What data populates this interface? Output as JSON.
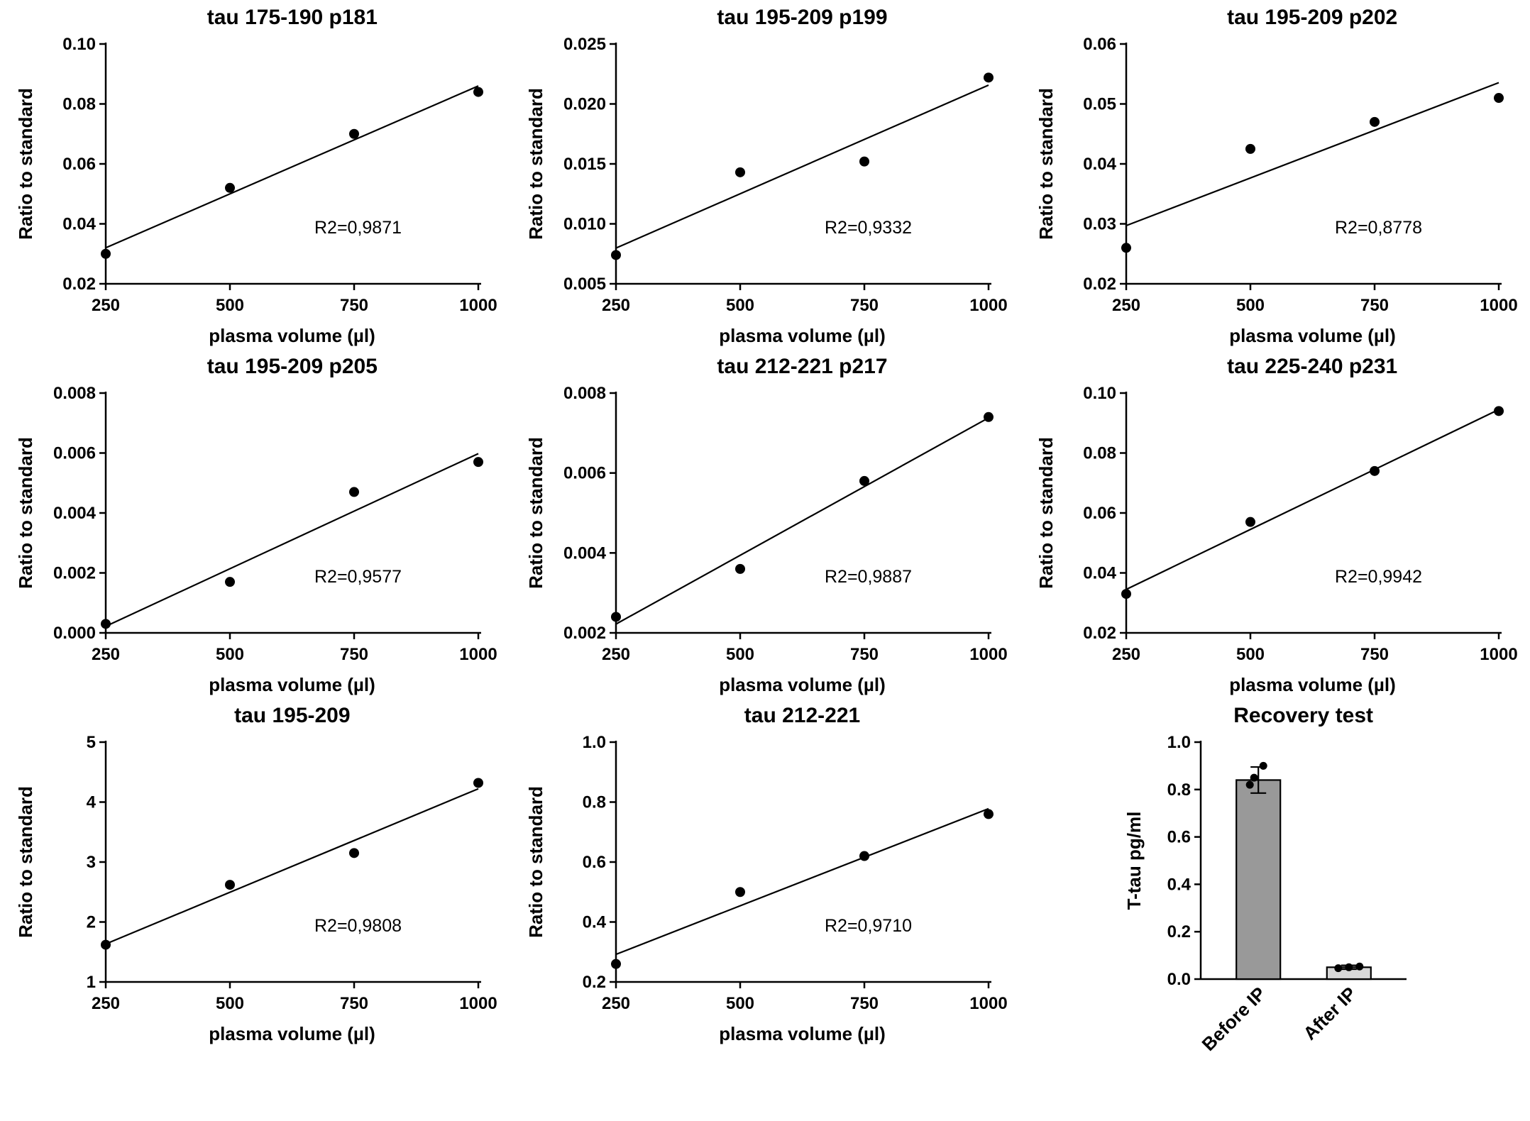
{
  "figure": {
    "background": "#ffffff",
    "accent_color": "#000000"
  },
  "chart_data": [
    {
      "type": "scatter",
      "title": "tau 175-190 p181",
      "xlabel": "plasma volume (µl)",
      "ylabel": "Ratio to standard",
      "x": [
        250,
        500,
        750,
        1000
      ],
      "y": [
        0.03,
        0.052,
        0.07,
        0.084
      ],
      "xticks": [
        "250",
        "500",
        "750",
        "1000"
      ],
      "yticks": [
        "0.02",
        "0.04",
        "0.06",
        "0.08",
        "0.10"
      ],
      "annotation": "R2=0,9871",
      "trendline": true,
      "marker_color": "#000000",
      "line_color": "#000000"
    },
    {
      "type": "scatter",
      "title": "tau 195-209 p199",
      "xlabel": "plasma volume (µl)",
      "ylabel": "Ratio to standard",
      "x": [
        250,
        500,
        750,
        1000
      ],
      "y": [
        0.0074,
        0.0143,
        0.0152,
        0.0222
      ],
      "xticks": [
        "250",
        "500",
        "750",
        "1000"
      ],
      "yticks": [
        "0.005",
        "0.010",
        "0.015",
        "0.020",
        "0.025"
      ],
      "annotation": "R2=0,9332",
      "trendline": true,
      "marker_color": "#000000",
      "line_color": "#000000"
    },
    {
      "type": "scatter",
      "title": "tau 195-209 p202",
      "xlabel": "plasma volume (µl)",
      "ylabel": "Ratio to standard",
      "x": [
        250,
        500,
        750,
        1000
      ],
      "y": [
        0.026,
        0.0425,
        0.047,
        0.051
      ],
      "xticks": [
        "250",
        "500",
        "750",
        "1000"
      ],
      "yticks": [
        "0.02",
        "0.03",
        "0.04",
        "0.05",
        "0.06"
      ],
      "annotation": "R2=0,8778",
      "trendline": true,
      "marker_color": "#000000",
      "line_color": "#000000"
    },
    {
      "type": "scatter",
      "title": "tau 195-209 p205",
      "xlabel": "plasma volume (µl)",
      "ylabel": "Ratio to standard",
      "x": [
        250,
        500,
        750,
        1000
      ],
      "y": [
        0.0003,
        0.0017,
        0.0047,
        0.0057
      ],
      "xticks": [
        "250",
        "500",
        "750",
        "1000"
      ],
      "yticks": [
        "0.000",
        "0.002",
        "0.004",
        "0.006",
        "0.008"
      ],
      "annotation": "R2=0,9577",
      "trendline": true,
      "marker_color": "#000000",
      "line_color": "#000000"
    },
    {
      "type": "scatter",
      "title": "tau 212-221 p217",
      "xlabel": "plasma volume (µl)",
      "ylabel": "Ratio to standard",
      "x": [
        250,
        500,
        750,
        1000
      ],
      "y": [
        0.0024,
        0.0036,
        0.0058,
        0.0074
      ],
      "xticks": [
        "250",
        "500",
        "750",
        "1000"
      ],
      "yticks": [
        "0.002",
        "0.004",
        "0.006",
        "0.008"
      ],
      "annotation": "R2=0,9887",
      "trendline": true,
      "marker_color": "#000000",
      "line_color": "#000000"
    },
    {
      "type": "scatter",
      "title": "tau 225-240 p231",
      "xlabel": "plasma volume (µl)",
      "ylabel": "Ratio to standard",
      "x": [
        250,
        500,
        750,
        1000
      ],
      "y": [
        0.033,
        0.057,
        0.074,
        0.094
      ],
      "xticks": [
        "250",
        "500",
        "750",
        "1000"
      ],
      "yticks": [
        "0.02",
        "0.04",
        "0.06",
        "0.08",
        "0.10"
      ],
      "annotation": "R2=0,9942",
      "trendline": true,
      "marker_color": "#000000",
      "line_color": "#000000"
    },
    {
      "type": "scatter",
      "title": "tau 195-209",
      "xlabel": "plasma volume (µl)",
      "ylabel": "Ratio to standard",
      "x": [
        250,
        500,
        750,
        1000
      ],
      "y": [
        1.62,
        2.62,
        3.15,
        4.32
      ],
      "xticks": [
        "250",
        "500",
        "750",
        "1000"
      ],
      "yticks": [
        "1",
        "2",
        "3",
        "4",
        "5"
      ],
      "annotation": "R2=0,9808",
      "trendline": true,
      "marker_color": "#000000",
      "line_color": "#000000"
    },
    {
      "type": "scatter",
      "title": "tau 212-221",
      "xlabel": "plasma volume (µl)",
      "ylabel": "Ratio to standard",
      "x": [
        250,
        500,
        750,
        1000
      ],
      "y": [
        0.26,
        0.5,
        0.62,
        0.76
      ],
      "xticks": [
        "250",
        "500",
        "750",
        "1000"
      ],
      "yticks": [
        "0.2",
        "0.4",
        "0.6",
        "0.8",
        "1.0"
      ],
      "annotation": "R2=0,9710",
      "trendline": true,
      "marker_color": "#000000",
      "line_color": "#000000"
    },
    {
      "type": "bar",
      "title": "Recovery test",
      "ylabel": "T-tau pg/ml",
      "categories": [
        "Before IP",
        "After IP"
      ],
      "values": [
        0.84,
        0.05
      ],
      "errors": [
        0.055,
        0.008
      ],
      "scatter_points": [
        [
          0.82,
          0.85,
          0.9
        ],
        [
          0.046,
          0.05,
          0.053
        ]
      ],
      "point_offsets": [
        [
          -12,
          -6,
          7
        ],
        [
          -15,
          0,
          15
        ]
      ],
      "yticks": [
        "0.0",
        "0.2",
        "0.4",
        "0.6",
        "0.8",
        "1.0"
      ],
      "bar_fills": [
        "#999999",
        "#d8d8d8"
      ],
      "bar_outline": "#000000",
      "marker_color": "#000000"
    }
  ]
}
